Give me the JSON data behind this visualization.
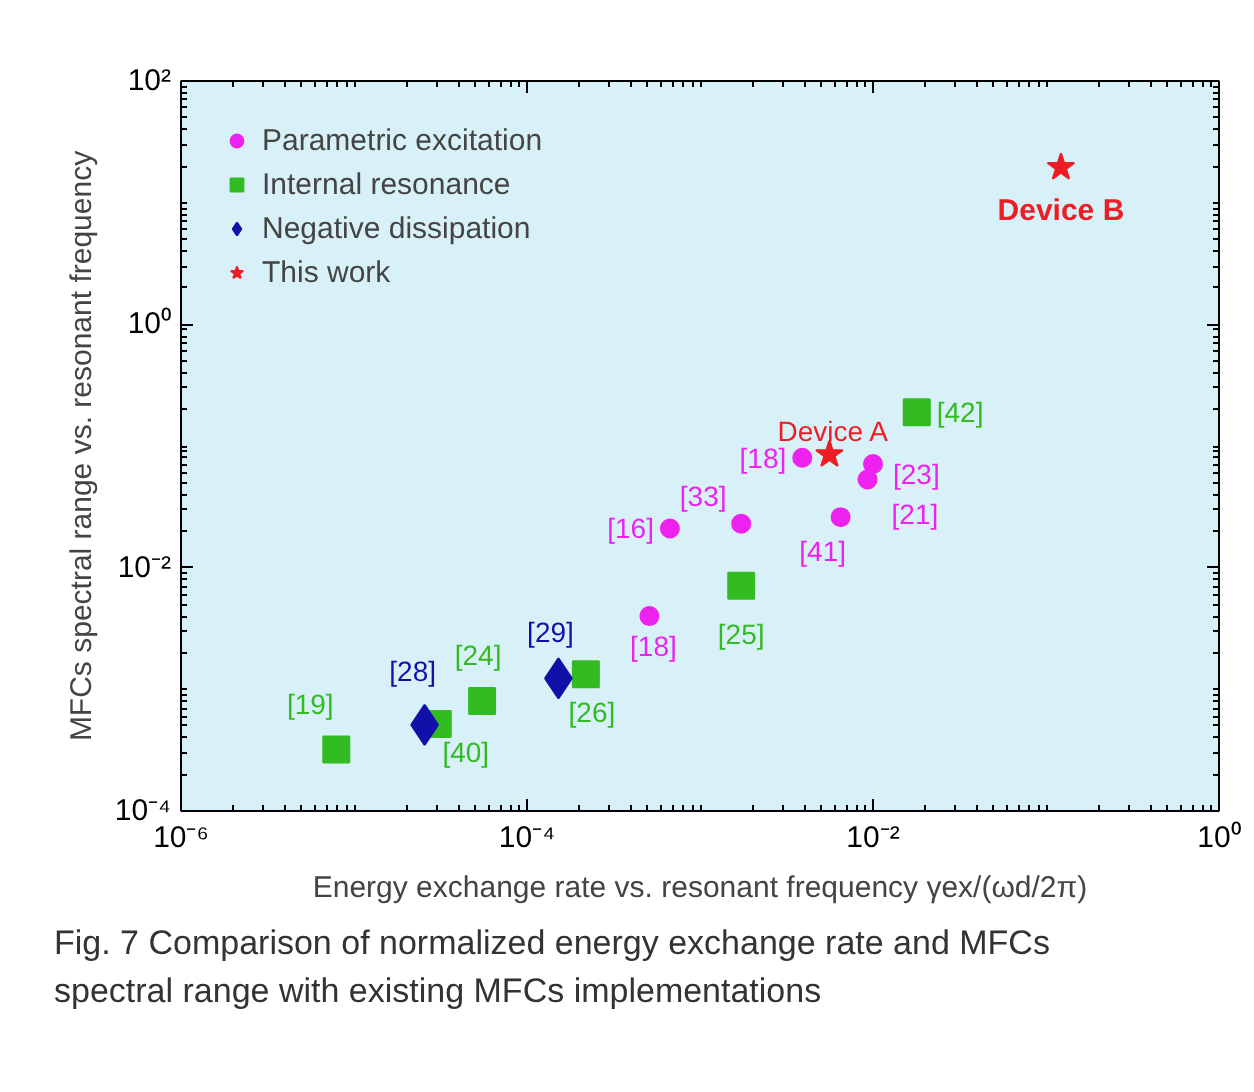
{
  "chart_data": {
    "type": "scatter",
    "xlabel": "Energy exchange rate vs. resonant frequency γex/(ωd/2π)",
    "ylabel": "MFCs spectral range vs. resonant frequency",
    "log": "xy",
    "grid": false,
    "legend": "top left",
    "xlim": [
      1e-06,
      1
    ],
    "ylim": [
      0.0001,
      100
    ],
    "xticks": [
      {
        "value": 1e-06,
        "label": "10⁻⁶"
      },
      {
        "value": 0.0001,
        "label": "10⁻⁴"
      },
      {
        "value": 0.01,
        "label": "10⁻²"
      },
      {
        "value": 1,
        "label": "10⁰"
      }
    ],
    "yticks": [
      {
        "value": 0.0001,
        "label": "10⁻⁴"
      },
      {
        "value": 0.01,
        "label": "10⁻²"
      },
      {
        "value": 1,
        "label": "10⁰"
      },
      {
        "value": 100,
        "label": "10²"
      }
    ],
    "series": [
      {
        "name": "Parametric excitation",
        "color": "#ee22ee",
        "marker": "circle",
        "x": [
          0.0039,
          0.01,
          0.0093,
          0.00067,
          0.00173,
          0.0065,
          0.00051
        ],
        "values": [
          0.08,
          0.071,
          0.053,
          0.021,
          0.023,
          0.026,
          0.004
        ]
      },
      {
        "name": "Internal resonance",
        "color": "#33bb22",
        "marker": "square",
        "x": [
          0.0179,
          0.00173,
          0.000219,
          5.5e-05,
          3.05e-05,
          7.9e-06
        ],
        "values": [
          0.189,
          0.0071,
          0.00133,
          0.0008,
          0.00052,
          0.00032
        ]
      },
      {
        "name": "Negative dissipation",
        "color": "#1111aa",
        "marker": "diamond",
        "x": [
          2.56e-05,
          0.000152
        ],
        "values": [
          0.00051,
          0.00123
        ]
      },
      {
        "name": "This work",
        "color": "#ee1c24",
        "marker": "star",
        "x": [
          0.0056,
          0.122
        ],
        "values": [
          0.085,
          19.5
        ]
      }
    ],
    "annotations": [
      {
        "text": "[18]",
        "x": 0.0039,
        "y": 0.08
      },
      {
        "text": "[23]",
        "x": 0.01,
        "y": 0.071
      },
      {
        "text": "[21]",
        "x": 0.0093,
        "y": 0.053
      },
      {
        "text": "[16]",
        "x": 0.00067,
        "y": 0.021
      },
      {
        "text": "[33]",
        "x": 0.00173,
        "y": 0.023
      },
      {
        "text": "[41]",
        "x": 0.0065,
        "y": 0.026
      },
      {
        "text": "[18]",
        "x": 0.00051,
        "y": 0.004
      },
      {
        "text": "[42]",
        "x": 0.0179,
        "y": 0.189
      },
      {
        "text": "[25]",
        "x": 0.00173,
        "y": 0.0071
      },
      {
        "text": "[26]",
        "x": 0.000219,
        "y": 0.00133
      },
      {
        "text": "[24]",
        "x": 5.5e-05,
        "y": 0.0008
      },
      {
        "text": "[40]",
        "x": 3.05e-05,
        "y": 0.00052
      },
      {
        "text": "[19]",
        "x": 7.9e-06,
        "y": 0.00032
      },
      {
        "text": "[28]",
        "x": 2.56e-05,
        "y": 0.00051
      },
      {
        "text": "[29]",
        "x": 0.000152,
        "y": 0.00123
      },
      {
        "text": "Device A",
        "x": 0.0056,
        "y": 0.085
      },
      {
        "text": "Device B",
        "x": 0.122,
        "y": 19.5
      },
      "Fig. 7 Comparison of normalized energy exchange rate and MFCs spectral range with existing MFCs implementations"
    ]
  }
}
